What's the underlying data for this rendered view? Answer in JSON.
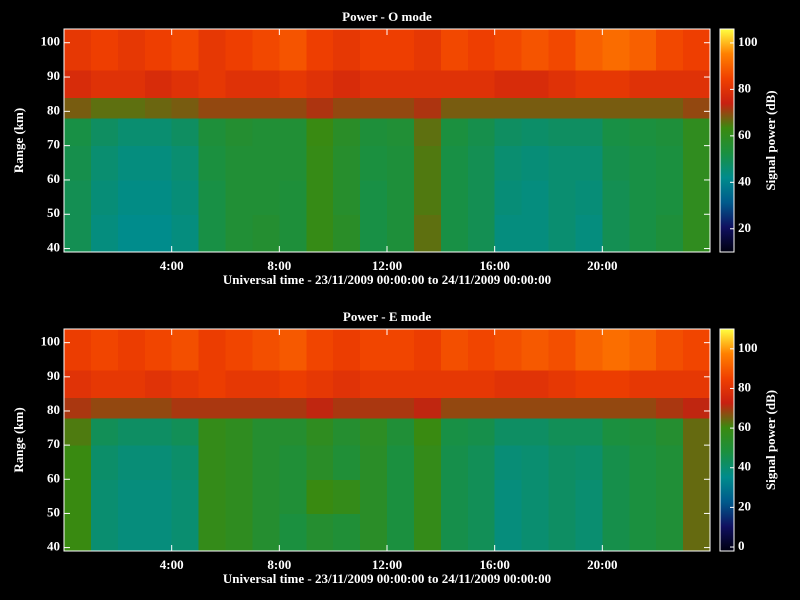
{
  "chart_data": [
    {
      "type": "heatmap",
      "title": "Power - O mode",
      "xlabel": "Universal time - 23/11/2009 00:00:00 to 24/11/2009 00:00:00",
      "ylabel": "Range (km)",
      "colorbar_label": "Signal power (dB)",
      "x_edges": [
        0,
        1,
        2,
        3,
        4,
        5,
        6,
        7,
        8,
        9,
        10,
        11,
        12,
        13,
        14,
        15,
        16,
        17,
        18,
        19,
        20,
        21,
        22,
        23,
        24
      ],
      "y_edges": [
        39,
        50,
        60,
        70,
        78,
        84,
        92,
        104
      ],
      "z": [
        [
          50,
          44,
          42,
          42,
          44,
          52,
          55,
          56,
          54,
          62,
          58,
          52,
          54,
          66,
          52,
          50,
          44,
          44,
          46,
          44,
          50,
          52,
          54,
          60
        ],
        [
          50,
          45,
          43,
          43,
          45,
          52,
          55,
          55,
          54,
          62,
          57,
          52,
          54,
          65,
          52,
          50,
          45,
          44,
          46,
          45,
          50,
          52,
          53,
          60
        ],
        [
          51,
          46,
          44,
          44,
          46,
          53,
          55,
          55,
          55,
          62,
          57,
          53,
          54,
          65,
          52,
          50,
          46,
          45,
          46,
          46,
          51,
          52,
          53,
          60
        ],
        [
          52,
          48,
          46,
          46,
          48,
          54,
          56,
          55,
          55,
          63,
          58,
          54,
          55,
          66,
          53,
          51,
          48,
          47,
          48,
          48,
          52,
          53,
          54,
          60
        ],
        [
          68,
          66,
          66,
          67,
          68,
          70,
          70,
          70,
          70,
          72,
          70,
          70,
          70,
          72,
          68,
          68,
          68,
          68,
          68,
          68,
          68,
          68,
          68,
          70
        ],
        [
          78,
          80,
          80,
          78,
          80,
          82,
          80,
          80,
          82,
          80,
          78,
          80,
          80,
          80,
          80,
          80,
          78,
          78,
          80,
          82,
          82,
          80,
          80,
          80
        ],
        [
          82,
          84,
          82,
          84,
          86,
          82,
          84,
          86,
          88,
          84,
          82,
          84,
          84,
          82,
          86,
          84,
          86,
          88,
          86,
          90,
          92,
          90,
          86,
          84
        ]
      ],
      "xlim": [
        0,
        24
      ],
      "ylim": [
        39,
        104
      ],
      "xticks": [
        {
          "value": 4,
          "label": "4:00"
        },
        {
          "value": 8,
          "label": "8:00"
        },
        {
          "value": 12,
          "label": "12:00"
        },
        {
          "value": 16,
          "label": "16:00"
        },
        {
          "value": 20,
          "label": "20:00"
        }
      ],
      "yticks": [
        40,
        50,
        60,
        70,
        80,
        90,
        100
      ],
      "clim": [
        10,
        106
      ],
      "cticks": [
        20,
        40,
        60,
        80,
        100
      ],
      "colormap": [
        "#000010",
        "#101060",
        "#005a8c",
        "#008c8c",
        "#1a9040",
        "#3a8a10",
        "#c82010",
        "#f04000",
        "#ff8000",
        "#ffff40"
      ]
    },
    {
      "type": "heatmap",
      "title": "Power - E mode",
      "xlabel": "Universal time - 23/11/2009 00:00:00 to 24/11/2009 00:00:00",
      "ylabel": "Range (km)",
      "colorbar_label": "Signal power (dB)",
      "x_edges": [
        0,
        1,
        2,
        3,
        4,
        5,
        6,
        7,
        8,
        9,
        10,
        11,
        12,
        13,
        14,
        15,
        16,
        17,
        18,
        19,
        20,
        21,
        22,
        23,
        24
      ],
      "y_edges": [
        39,
        50,
        60,
        70,
        78,
        84,
        92,
        104
      ],
      "z": [
        [
          60,
          40,
          38,
          38,
          40,
          58,
          56,
          52,
          48,
          52,
          50,
          54,
          48,
          58,
          46,
          44,
          38,
          40,
          42,
          40,
          46,
          48,
          50,
          64
        ],
        [
          60,
          40,
          38,
          38,
          40,
          58,
          56,
          52,
          50,
          60,
          58,
          54,
          48,
          58,
          46,
          44,
          38,
          40,
          42,
          40,
          46,
          48,
          50,
          64
        ],
        [
          60,
          41,
          39,
          39,
          41,
          58,
          56,
          52,
          50,
          54,
          50,
          54,
          48,
          58,
          46,
          44,
          39,
          40,
          42,
          41,
          46,
          48,
          50,
          64
        ],
        [
          62,
          44,
          42,
          42,
          44,
          58,
          56,
          52,
          52,
          56,
          52,
          55,
          50,
          60,
          47,
          46,
          42,
          42,
          44,
          44,
          48,
          49,
          52,
          64
        ],
        [
          70,
          68,
          68,
          68,
          70,
          70,
          70,
          70,
          70,
          72,
          70,
          70,
          70,
          72,
          68,
          68,
          68,
          68,
          68,
          68,
          68,
          68,
          70,
          72
        ],
        [
          80,
          82,
          82,
          80,
          82,
          84,
          82,
          82,
          84,
          82,
          80,
          82,
          82,
          82,
          82,
          82,
          80,
          80,
          82,
          84,
          84,
          82,
          82,
          82
        ],
        [
          84,
          86,
          84,
          86,
          88,
          84,
          86,
          88,
          90,
          86,
          84,
          86,
          86,
          84,
          88,
          86,
          88,
          90,
          88,
          92,
          94,
          92,
          88,
          86
        ]
      ],
      "xlim": [
        0,
        24
      ],
      "ylim": [
        39,
        104
      ],
      "xticks": [
        {
          "value": 4,
          "label": "4:00"
        },
        {
          "value": 8,
          "label": "8:00"
        },
        {
          "value": 12,
          "label": "12:00"
        },
        {
          "value": 16,
          "label": "16:00"
        },
        {
          "value": 20,
          "label": "20:00"
        }
      ],
      "yticks": [
        40,
        50,
        60,
        70,
        80,
        90,
        100
      ],
      "clim": [
        -2,
        110
      ],
      "cticks": [
        0,
        20,
        40,
        60,
        80,
        100
      ],
      "colormap": [
        "#000010",
        "#101060",
        "#005a8c",
        "#008c8c",
        "#1a9040",
        "#3a8a10",
        "#c82010",
        "#f04000",
        "#ff8000",
        "#ffff40"
      ]
    }
  ]
}
